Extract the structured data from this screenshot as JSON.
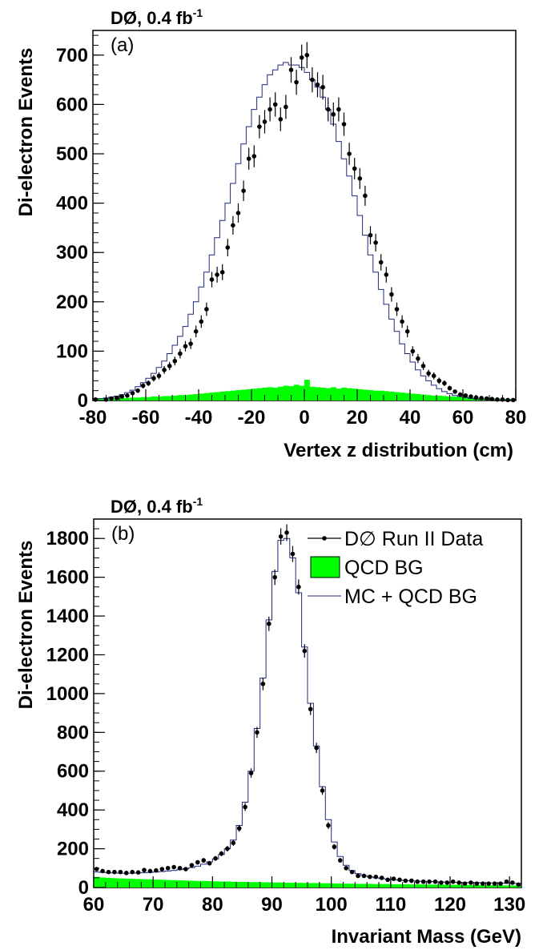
{
  "chart_data": [
    {
      "type": "bar",
      "title": "DØ, 0.4 fb",
      "title_superscript": "-1",
      "panel_label": "(a)",
      "xlabel": "Vertex z distribution (cm)",
      "ylabel": "Di-electron Events",
      "xlim": [
        -80,
        80
      ],
      "ylim": [
        0,
        750
      ],
      "xticks": [
        "-80",
        "-60",
        "-40",
        "-20",
        "0",
        "20",
        "40",
        "60",
        "80"
      ],
      "yticks": [
        "0",
        "100",
        "200",
        "300",
        "400",
        "500",
        "600",
        "700"
      ],
      "grid": false,
      "bin_width": 2,
      "colors": {
        "data": "#000000",
        "qcd_bg": "#00ff00",
        "mc_line": "#1f2a7a"
      },
      "series": [
        {
          "role": "data_points",
          "x": [
            -79,
            -75,
            -73,
            -71,
            -69,
            -67,
            -65,
            -63,
            -61,
            -59,
            -57,
            -55,
            -53,
            -51,
            -49,
            -47,
            -45,
            -43,
            -41,
            -39,
            -37,
            -35,
            -33,
            -31,
            -29,
            -27,
            -25,
            -23,
            -21,
            -19,
            -17,
            -15,
            -13,
            -11,
            -9,
            -7,
            -5,
            -3,
            -1,
            1,
            3,
            5,
            7,
            9,
            11,
            13,
            15,
            17,
            19,
            21,
            23,
            25,
            27,
            29,
            31,
            33,
            35,
            37,
            39,
            41,
            43,
            45,
            47,
            49,
            51,
            53,
            55,
            57,
            59,
            61,
            63,
            65,
            67,
            69,
            71,
            73,
            75,
            77,
            79
          ],
          "values": [
            2,
            2,
            4,
            5,
            8,
            10,
            15,
            20,
            30,
            35,
            45,
            50,
            62,
            70,
            80,
            95,
            110,
            115,
            140,
            160,
            185,
            245,
            255,
            260,
            310,
            355,
            380,
            425,
            490,
            495,
            555,
            565,
            590,
            600,
            570,
            595,
            670,
            645,
            695,
            700,
            650,
            640,
            635,
            590,
            580,
            590,
            560,
            500,
            470,
            450,
            415,
            335,
            320,
            280,
            255,
            215,
            185,
            160,
            140,
            100,
            85,
            70,
            55,
            50,
            40,
            35,
            25,
            18,
            12,
            10,
            8,
            6,
            5,
            4,
            3,
            2,
            2,
            1,
            1
          ]
        },
        {
          "role": "qcd_bg_fill",
          "x": [
            -79,
            -77,
            -75,
            -73,
            -71,
            -69,
            -67,
            -65,
            -63,
            -61,
            -59,
            -57,
            -55,
            -53,
            -51,
            -49,
            -47,
            -45,
            -43,
            -41,
            -39,
            -37,
            -35,
            -33,
            -31,
            -29,
            -27,
            -25,
            -23,
            -21,
            -19,
            -17,
            -15,
            -13,
            -11,
            -9,
            -7,
            -5,
            -3,
            -1,
            1,
            3,
            5,
            7,
            9,
            11,
            13,
            15,
            17,
            19,
            21,
            23,
            25,
            27,
            29,
            31,
            33,
            35,
            37,
            39,
            41,
            43,
            45,
            47,
            49,
            51,
            53,
            55,
            57,
            59,
            61,
            63,
            65,
            67,
            69,
            71,
            73,
            75,
            77,
            79
          ],
          "values": [
            3,
            3,
            4,
            4,
            5,
            5,
            5,
            6,
            6,
            7,
            7,
            8,
            8,
            9,
            9,
            10,
            11,
            11,
            12,
            13,
            14,
            15,
            16,
            17,
            18,
            19,
            20,
            21,
            22,
            23,
            24,
            25,
            26,
            27,
            26,
            28,
            30,
            29,
            32,
            30,
            42,
            28,
            27,
            26,
            25,
            27,
            24,
            26,
            25,
            24,
            23,
            22,
            21,
            20,
            20,
            19,
            18,
            17,
            16,
            15,
            14,
            13,
            12,
            11,
            10,
            10,
            9,
            8,
            8,
            7,
            7,
            6,
            6,
            5,
            5,
            4,
            4,
            3,
            3,
            3
          ]
        },
        {
          "role": "mc_plus_qcd_bg_line",
          "x": [
            -79,
            -77,
            -75,
            -73,
            -71,
            -69,
            -67,
            -65,
            -63,
            -61,
            -59,
            -57,
            -55,
            -53,
            -51,
            -49,
            -47,
            -45,
            -43,
            -41,
            -39,
            -37,
            -35,
            -33,
            -31,
            -29,
            -27,
            -25,
            -23,
            -21,
            -19,
            -17,
            -15,
            -13,
            -11,
            -9,
            -7,
            -5,
            -3,
            -1,
            1,
            3,
            5,
            7,
            9,
            11,
            13,
            15,
            17,
            19,
            21,
            23,
            25,
            27,
            29,
            31,
            33,
            35,
            37,
            39,
            41,
            43,
            45,
            47,
            49,
            51,
            53,
            55,
            57,
            59,
            61,
            63,
            65,
            67,
            69,
            71,
            73,
            75,
            77,
            79
          ],
          "values": [
            3,
            4,
            5,
            7,
            9,
            12,
            16,
            21,
            28,
            36,
            45,
            55,
            67,
            80,
            95,
            112,
            130,
            150,
            175,
            200,
            230,
            260,
            295,
            330,
            365,
            400,
            440,
            480,
            520,
            555,
            590,
            615,
            640,
            660,
            670,
            680,
            685,
            680,
            680,
            675,
            665,
            650,
            635,
            615,
            590,
            560,
            525,
            490,
            455,
            415,
            375,
            335,
            295,
            260,
            225,
            195,
            165,
            140,
            115,
            95,
            78,
            62,
            50,
            40,
            31,
            24,
            18,
            14,
            10,
            8,
            6,
            4,
            3,
            2,
            2,
            1,
            1,
            1,
            1,
            1
          ]
        }
      ]
    },
    {
      "type": "bar",
      "title": "DØ, 0.4 fb",
      "title_superscript": "-1",
      "panel_label": "(b)",
      "xlabel": "Invariant Mass (GeV)",
      "ylabel": "Di-electron Events",
      "xlim": [
        60,
        132
      ],
      "ylim": [
        0,
        1900
      ],
      "xticks": [
        "60",
        "70",
        "80",
        "90",
        "100",
        "110",
        "120",
        "130"
      ],
      "yticks": [
        "0",
        "200",
        "400",
        "600",
        "800",
        "1000",
        "1200",
        "1400",
        "1600",
        "1800"
      ],
      "grid": false,
      "bin_width": 1,
      "legend_position": "top-right",
      "legend": [
        "D∅ Run II Data",
        "QCD BG",
        "MC + QCD BG"
      ],
      "colors": {
        "data": "#000000",
        "qcd_bg": "#00ff00",
        "mc_line": "#1f2a7a"
      },
      "series": [
        {
          "name": "D∅ Run II Data",
          "x": [
            60.5,
            61.5,
            62.5,
            63.5,
            64.5,
            65.5,
            66.5,
            67.5,
            68.5,
            69.5,
            70.5,
            71.5,
            72.5,
            73.5,
            74.5,
            75.5,
            76.5,
            77.5,
            78.5,
            79.5,
            80.5,
            81.5,
            82.5,
            83.5,
            84.5,
            85.5,
            86.5,
            87.5,
            88.5,
            89.5,
            90.5,
            91.5,
            92.5,
            93.5,
            94.5,
            95.5,
            96.5,
            97.5,
            98.5,
            99.5,
            100.5,
            101.5,
            102.5,
            103.5,
            104.5,
            105.5,
            106.5,
            107.5,
            108.5,
            109.5,
            110.5,
            111.5,
            112.5,
            113.5,
            114.5,
            115.5,
            116.5,
            117.5,
            118.5,
            119.5,
            120.5,
            121.5,
            122.5,
            123.5,
            124.5,
            125.5,
            126.5,
            127.5,
            128.5,
            129.5,
            130.5,
            131.5
          ],
          "values": [
            95,
            85,
            80,
            80,
            80,
            75,
            80,
            78,
            90,
            85,
            88,
            95,
            100,
            105,
            100,
            95,
            115,
            130,
            140,
            125,
            150,
            175,
            200,
            230,
            305,
            415,
            590,
            800,
            1050,
            1360,
            1600,
            1810,
            1830,
            1720,
            1550,
            1220,
            920,
            720,
            500,
            320,
            210,
            140,
            100,
            80,
            60,
            60,
            55,
            55,
            50,
            40,
            45,
            40,
            35,
            35,
            30,
            30,
            30,
            30,
            25,
            25,
            30,
            25,
            20,
            25,
            20,
            20,
            20,
            20,
            20,
            30,
            25,
            15
          ]
        },
        {
          "name": "QCD BG",
          "x": [
            60.5,
            61.5,
            62.5,
            63.5,
            64.5,
            65.5,
            66.5,
            67.5,
            68.5,
            69.5,
            70.5,
            71.5,
            72.5,
            73.5,
            74.5,
            75.5,
            76.5,
            77.5,
            78.5,
            79.5,
            80.5,
            81.5,
            82.5,
            83.5,
            84.5,
            85.5,
            86.5,
            87.5,
            88.5,
            89.5,
            90.5,
            91.5,
            92.5,
            93.5,
            94.5,
            95.5,
            96.5,
            97.5,
            98.5,
            99.5,
            100.5,
            101.5,
            102.5,
            103.5,
            104.5,
            105.5,
            106.5,
            107.5,
            108.5,
            109.5,
            110.5,
            111.5,
            112.5,
            113.5,
            114.5,
            115.5,
            116.5,
            117.5,
            118.5,
            119.5,
            120.5,
            121.5,
            122.5,
            123.5,
            124.5,
            125.5,
            126.5,
            127.5,
            128.5,
            129.5,
            130.5,
            131.5
          ],
          "values": [
            55,
            52,
            50,
            48,
            47,
            46,
            45,
            44,
            43,
            42,
            41,
            40,
            39,
            38,
            37,
            36,
            35,
            34,
            34,
            33,
            32,
            31,
            31,
            30,
            29,
            29,
            28,
            28,
            27,
            27,
            26,
            26,
            25,
            25,
            24,
            24,
            23,
            23,
            22,
            22,
            21,
            21,
            20,
            20,
            19,
            19,
            19,
            18,
            18,
            18,
            17,
            17,
            17,
            16,
            16,
            16,
            15,
            15,
            15,
            14,
            14,
            14,
            13,
            13,
            13,
            12,
            12,
            12,
            11,
            11,
            11,
            10
          ]
        },
        {
          "name": "MC + QCD BG",
          "x": [
            60.5,
            61.5,
            62.5,
            63.5,
            64.5,
            65.5,
            66.5,
            67.5,
            68.5,
            69.5,
            70.5,
            71.5,
            72.5,
            73.5,
            74.5,
            75.5,
            76.5,
            77.5,
            78.5,
            79.5,
            80.5,
            81.5,
            82.5,
            83.5,
            84.5,
            85.5,
            86.5,
            87.5,
            88.5,
            89.5,
            90.5,
            91.5,
            92.5,
            93.5,
            94.5,
            95.5,
            96.5,
            97.5,
            98.5,
            99.5,
            100.5,
            101.5,
            102.5,
            103.5,
            104.5,
            105.5,
            106.5,
            107.5,
            108.5,
            109.5,
            110.5,
            111.5,
            112.5,
            113.5,
            114.5,
            115.5,
            116.5,
            117.5,
            118.5,
            119.5,
            120.5,
            121.5,
            122.5,
            123.5,
            124.5,
            125.5,
            126.5,
            127.5,
            128.5,
            129.5,
            130.5,
            131.5
          ],
          "values": [
            80,
            78,
            76,
            75,
            74,
            74,
            74,
            75,
            76,
            78,
            80,
            82,
            85,
            88,
            92,
            97,
            103,
            110,
            120,
            132,
            148,
            170,
            200,
            245,
            320,
            440,
            600,
            820,
            1080,
            1380,
            1630,
            1790,
            1800,
            1700,
            1520,
            1240,
            950,
            730,
            520,
            350,
            235,
            160,
            115,
            88,
            72,
            62,
            55,
            50,
            46,
            43,
            40,
            38,
            36,
            34,
            33,
            32,
            31,
            30,
            29,
            28,
            27,
            27,
            26,
            25,
            25,
            24,
            24,
            23,
            23,
            22,
            22,
            21
          ]
        }
      ]
    }
  ]
}
